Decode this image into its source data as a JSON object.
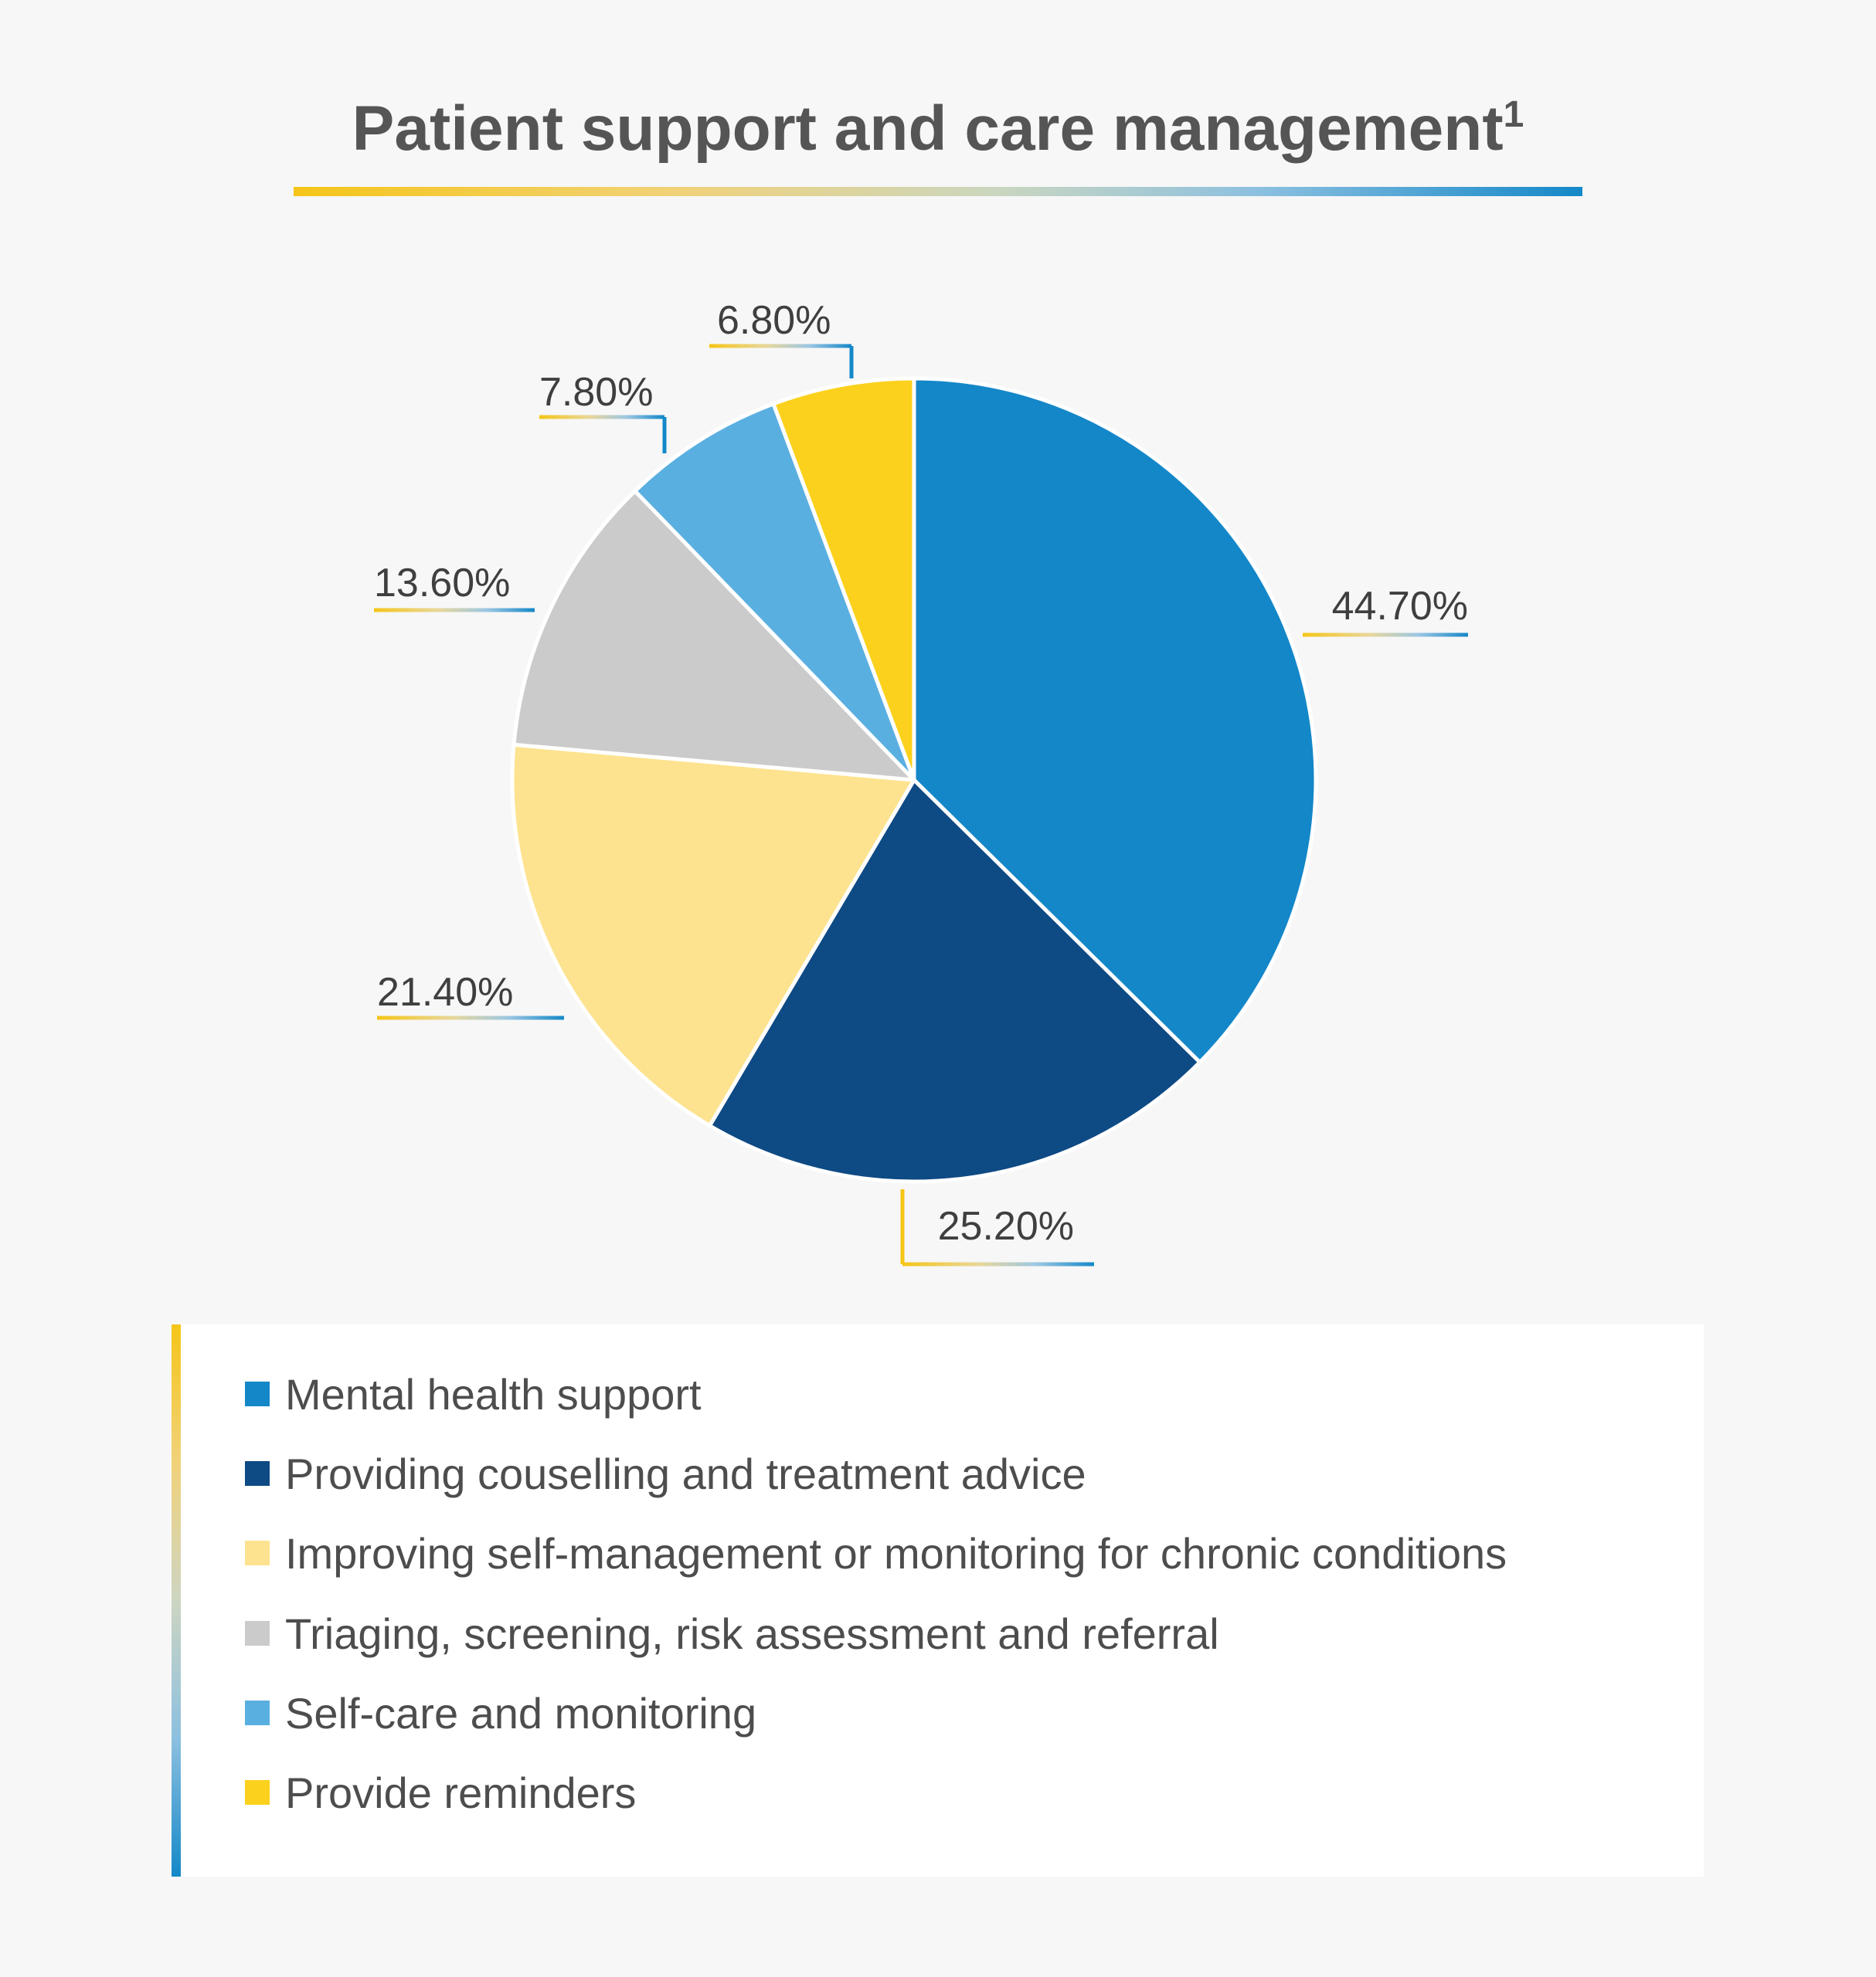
{
  "page": {
    "title": "Patient support and care management",
    "title_sup": "1"
  },
  "chart_data": {
    "type": "pie",
    "title": "Patient support and care management",
    "slices": [
      {
        "label": "Mental health support",
        "value": 44.7,
        "value_label": "44.70%",
        "color": "#1487c9"
      },
      {
        "label": "Providing couselling and treatment advice",
        "value": 25.2,
        "value_label": "25.20%",
        "color": "#0e4a84"
      },
      {
        "label": "Improving self-management or monitoring for chronic conditions",
        "value": 21.4,
        "value_label": "21.40%",
        "color": "#fde38f"
      },
      {
        "label": "Triaging, screening, risk assessment and referral",
        "value": 13.6,
        "value_label": "13.60%",
        "color": "#cbcbcb"
      },
      {
        "label": "Self-care and monitoring",
        "value": 7.8,
        "value_label": "7.80%",
        "color": "#5aafe1"
      },
      {
        "label": "Provide reminders",
        "value": 6.8,
        "value_label": "6.80%",
        "color": "#fbd11d"
      }
    ],
    "legend_position": "bottom"
  }
}
